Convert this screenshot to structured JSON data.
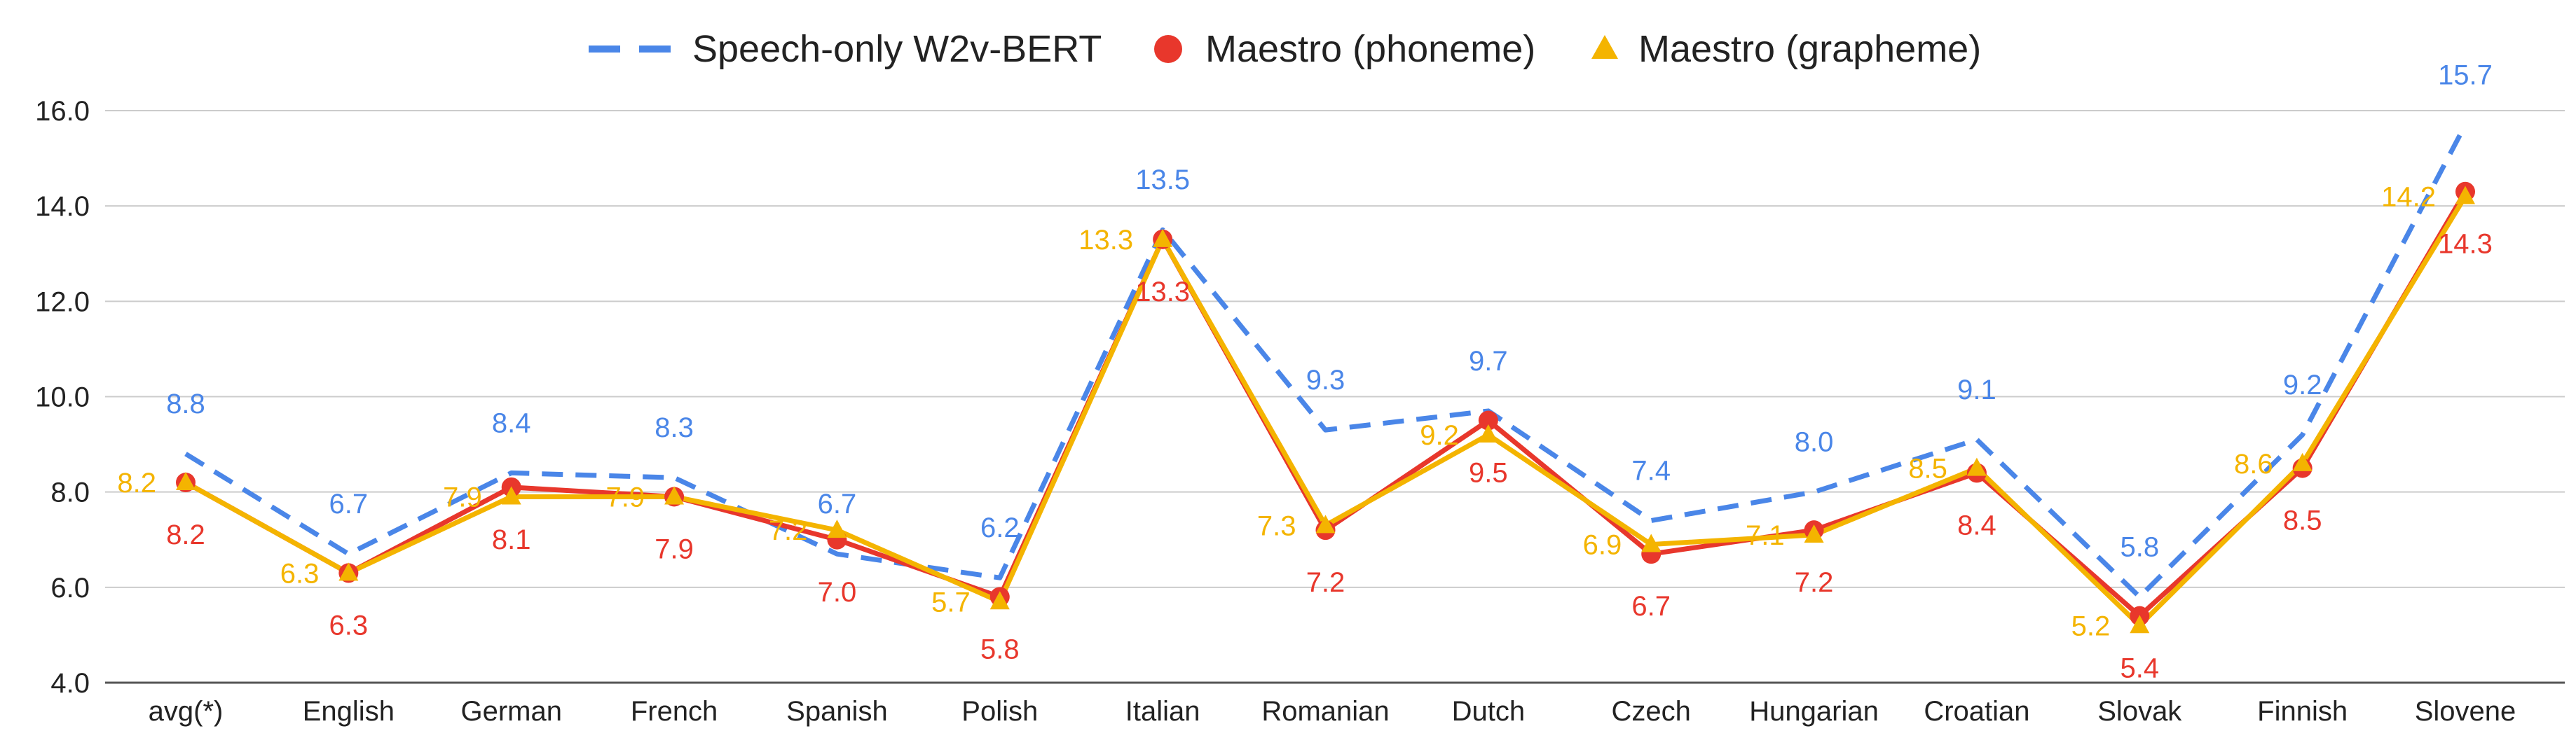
{
  "chart_data": {
    "type": "line",
    "title": "",
    "xlabel": "",
    "ylabel": "",
    "ylim": [
      4.0,
      16.0
    ],
    "yticks": [
      "4.0",
      "6.0",
      "8.0",
      "10.0",
      "12.0",
      "14.0",
      "16.0"
    ],
    "grid": "horizontal",
    "legend_position": "top",
    "categories": [
      "avg(*)",
      "English",
      "German",
      "French",
      "Spanish",
      "Polish",
      "Italian",
      "Romanian",
      "Dutch",
      "Czech",
      "Hungarian",
      "Croatian",
      "Slovak",
      "Finnish",
      "Slovene"
    ],
    "series": [
      {
        "name": "Speech-only W2v-BERT",
        "style": "dashed-line",
        "color": "#4a86e8",
        "values": [
          8.8,
          6.7,
          8.4,
          8.3,
          6.7,
          6.2,
          13.5,
          9.3,
          9.7,
          7.4,
          8.0,
          9.1,
          5.8,
          9.2,
          15.7
        ],
        "labels": [
          "8.8",
          "6.7",
          "8.4",
          "8.3",
          "6.7",
          "6.2",
          "13.5",
          "9.3",
          "9.7",
          "7.4",
          "8.0",
          "9.1",
          "5.8",
          "9.2",
          "15.7"
        ]
      },
      {
        "name": "Maestro (phoneme)",
        "style": "circle",
        "color": "#e8372c",
        "values": [
          8.2,
          6.3,
          8.1,
          7.9,
          7.0,
          5.8,
          13.3,
          7.2,
          9.5,
          6.7,
          7.2,
          8.4,
          5.4,
          8.5,
          14.3
        ],
        "labels": [
          "8.2",
          "6.3",
          "8.1",
          "7.9",
          "7.0",
          "5.8",
          "13.3",
          "7.2",
          "9.5",
          "6.7",
          "7.2",
          "8.4",
          "5.4",
          "8.5",
          "14.3"
        ]
      },
      {
        "name": "Maestro (grapheme)",
        "style": "triangle",
        "color": "#f4b400",
        "values": [
          8.2,
          6.3,
          7.9,
          7.9,
          7.2,
          5.7,
          13.3,
          7.3,
          9.2,
          6.9,
          7.1,
          8.5,
          5.2,
          8.6,
          14.2
        ],
        "labels": [
          "8.2",
          "6.3",
          "7.9",
          "7.9",
          "7.2",
          "5.7",
          "13.3",
          "7.3",
          "9.2",
          "6.9",
          "7.1",
          "8.5",
          "5.2",
          "8.6",
          "14.2"
        ]
      }
    ]
  }
}
